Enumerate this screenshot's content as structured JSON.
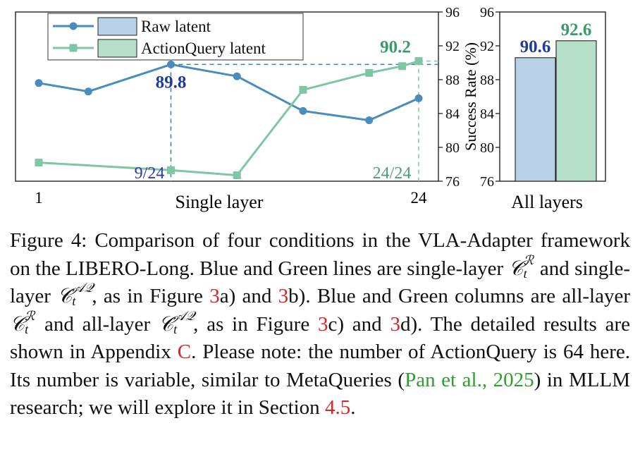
{
  "chart_data": [
    {
      "type": "line",
      "xlabel": "Single layer",
      "x_tick_labels": [
        "1",
        "24"
      ],
      "x": [
        1,
        4,
        9,
        13,
        17,
        21,
        24
      ],
      "ylabel": "Success Rate (%)",
      "ylim": [
        76,
        96
      ],
      "y_ticks": [
        "76",
        "80",
        "84",
        "88",
        "92",
        "96"
      ],
      "legend_position": "top-left",
      "series": [
        {
          "name": "Raw latent",
          "color": "#4a8cbb",
          "marker": "circle",
          "x": [
            1,
            4,
            9,
            13,
            17,
            21,
            24
          ],
          "values": [
            87.6,
            86.6,
            89.8,
            88.4,
            84.3,
            83.2,
            85.8
          ]
        },
        {
          "name": "ActionQuery latent",
          "color": "#7fc6a4",
          "marker": "square",
          "x": [
            1,
            9,
            13,
            17,
            21,
            23,
            24
          ],
          "values": [
            78.2,
            77.3,
            76.7,
            86.8,
            88.8,
            89.6,
            90.2
          ]
        }
      ],
      "annotations": [
        {
          "text": "89.8",
          "color": "#1f3c99",
          "series": "Raw latent",
          "x": 9,
          "y": 89.8
        },
        {
          "text": "90.2",
          "color": "#3a9a6a",
          "series": "ActionQuery latent",
          "x": 24,
          "y": 90.2
        },
        {
          "text": "9/24",
          "color": "#2b3fa8"
        },
        {
          "text": "24/24",
          "color": "#4b9e78"
        }
      ]
    },
    {
      "type": "bar",
      "xlabel": "All layers",
      "ylim": [
        76,
        96
      ],
      "y_ticks": [
        "76",
        "80",
        "84",
        "88",
        "92",
        "96"
      ],
      "series": [
        {
          "name": "Raw latent",
          "color": "#b8d1e6",
          "value": 90.6,
          "label": "90.6",
          "label_color": "#1f3c99"
        },
        {
          "name": "ActionQuery latent",
          "color": "#b5dfc8",
          "value": 92.6,
          "label": "92.6",
          "label_color": "#3a9a6a"
        }
      ]
    }
  ],
  "legend": {
    "raw_label": "Raw latent",
    "aq_label": "ActionQuery latent"
  },
  "caption": {
    "part1": "Figure 4: Comparison of four conditions in the VLA-Adapter framework on the LIBERO-Long. Blue and Green lines are single-layer ",
    "math_base": "𝒞",
    "sub_t": "t",
    "sup_R": "ℛ",
    "sup_AQ": "𝒜𝒬",
    "part2": " and single-layer ",
    "part3": ", as in Figure ",
    "ref_3": "3",
    "part4": "a) and ",
    "part5": "b). Blue and Green columns are all-layer ",
    "part6": " and all-layer ",
    "part7": ", as in Figure ",
    "part8": "c) and ",
    "part9": "d). The detailed results are shown in Appendix ",
    "ref_C": "C",
    "part10": ". Please note: the number of ActionQuery is 64 here. Its number is variable, similar to MetaQueries (",
    "cite": "Pan et al., 2025",
    "part11": ") in MLLM research; we will explore it in Section ",
    "ref_sec": "4.5",
    "part12": "."
  }
}
